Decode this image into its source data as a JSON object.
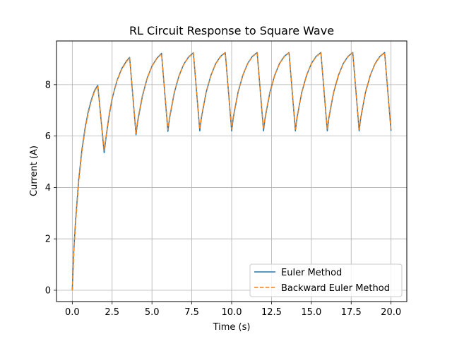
{
  "chart_data": {
    "type": "line",
    "title": "RL Circuit Response to Square Wave",
    "xlabel": "Time (s)",
    "ylabel": "Current (A)",
    "xlim": [
      -0.99,
      20.99
    ],
    "ylim": [
      -0.44,
      9.7
    ],
    "xticks": [
      0.0,
      2.5,
      5.0,
      7.5,
      10.0,
      12.5,
      15.0,
      17.5,
      20.0
    ],
    "xtick_labels": [
      "0.0",
      "2.5",
      "5.0",
      "7.5",
      "10.0",
      "12.5",
      "15.0",
      "17.5",
      "20.0"
    ],
    "yticks": [
      0,
      2,
      4,
      6,
      8
    ],
    "ytick_labels": [
      "0",
      "2",
      "4",
      "6",
      "8"
    ],
    "grid": true,
    "legend_position": "lower-right",
    "series": [
      {
        "name": "Euler Method",
        "color": "#1f77b4",
        "style": "solid",
        "x": [
          0.0,
          0.1,
          0.2,
          0.4,
          0.6,
          0.8,
          1.0,
          1.2,
          1.4,
          1.6,
          2.0,
          2.1,
          2.3,
          2.5,
          2.8,
          3.1,
          3.4,
          3.6,
          4.0,
          4.1,
          4.4,
          4.7,
          5.0,
          5.3,
          5.6,
          6.0,
          6.1,
          6.4,
          6.7,
          7.0,
          7.3,
          7.6,
          8.0,
          8.1,
          8.4,
          8.7,
          9.0,
          9.3,
          9.6,
          10.0,
          10.1,
          10.4,
          10.7,
          11.0,
          11.3,
          11.6,
          12.0,
          12.1,
          12.4,
          12.7,
          13.0,
          13.3,
          13.6,
          14.0,
          14.1,
          14.4,
          14.7,
          15.0,
          15.3,
          15.6,
          16.0,
          16.1,
          16.4,
          16.7,
          17.0,
          17.3,
          17.6,
          18.0,
          18.1,
          18.4,
          18.7,
          19.0,
          19.3,
          19.6,
          20.0
        ],
        "y": [
          0.0,
          1.6,
          2.65,
          4.28,
          5.45,
          6.3,
          6.95,
          7.42,
          7.78,
          7.98,
          5.35,
          5.85,
          6.75,
          7.45,
          8.15,
          8.62,
          8.92,
          9.06,
          6.05,
          6.55,
          7.55,
          8.25,
          8.72,
          9.02,
          9.22,
          6.18,
          6.68,
          7.68,
          8.35,
          8.8,
          9.08,
          9.24,
          6.2,
          6.7,
          7.7,
          8.36,
          8.82,
          9.1,
          9.25,
          6.2,
          6.7,
          7.7,
          8.36,
          8.82,
          9.1,
          9.25,
          6.2,
          6.7,
          7.7,
          8.36,
          8.82,
          9.1,
          9.25,
          6.2,
          6.7,
          7.7,
          8.36,
          8.82,
          9.1,
          9.25,
          6.2,
          6.7,
          7.7,
          8.36,
          8.82,
          9.1,
          9.25,
          6.2,
          6.7,
          7.7,
          8.36,
          8.82,
          9.1,
          9.25,
          6.2
        ]
      },
      {
        "name": "Backward Euler Method",
        "color": "#ff7f0e",
        "style": "dashed",
        "x": [
          0.0,
          0.1,
          0.2,
          0.4,
          0.6,
          0.8,
          1.0,
          1.2,
          1.4,
          1.6,
          2.0,
          2.1,
          2.3,
          2.5,
          2.8,
          3.1,
          3.4,
          3.6,
          4.0,
          4.1,
          4.4,
          4.7,
          5.0,
          5.3,
          5.6,
          6.0,
          6.1,
          6.4,
          6.7,
          7.0,
          7.3,
          7.6,
          8.0,
          8.1,
          8.4,
          8.7,
          9.0,
          9.3,
          9.6,
          10.0,
          10.1,
          10.4,
          10.7,
          11.0,
          11.3,
          11.6,
          12.0,
          12.1,
          12.4,
          12.7,
          13.0,
          13.3,
          13.6,
          14.0,
          14.1,
          14.4,
          14.7,
          15.0,
          15.3,
          15.6,
          16.0,
          16.1,
          16.4,
          16.7,
          17.0,
          17.3,
          17.6,
          18.0,
          18.1,
          18.4,
          18.7,
          19.0,
          19.3,
          19.6,
          20.0
        ],
        "y": [
          0.0,
          1.5,
          2.55,
          4.2,
          5.38,
          6.25,
          6.9,
          7.38,
          7.75,
          7.95,
          5.45,
          5.9,
          6.78,
          7.47,
          8.15,
          8.6,
          8.9,
          9.04,
          6.12,
          6.6,
          7.58,
          8.26,
          8.72,
          9.01,
          9.2,
          6.25,
          6.72,
          7.7,
          8.36,
          8.8,
          9.07,
          9.23,
          6.27,
          6.74,
          7.72,
          8.37,
          8.81,
          9.09,
          9.24,
          6.27,
          6.74,
          7.72,
          8.37,
          8.81,
          9.09,
          9.24,
          6.27,
          6.74,
          7.72,
          8.37,
          8.81,
          9.09,
          9.24,
          6.27,
          6.74,
          7.72,
          8.37,
          8.81,
          9.09,
          9.24,
          6.27,
          6.74,
          7.72,
          8.37,
          8.81,
          9.09,
          9.24,
          6.27,
          6.74,
          7.72,
          8.37,
          8.81,
          9.09,
          9.24,
          6.25
        ]
      }
    ]
  }
}
